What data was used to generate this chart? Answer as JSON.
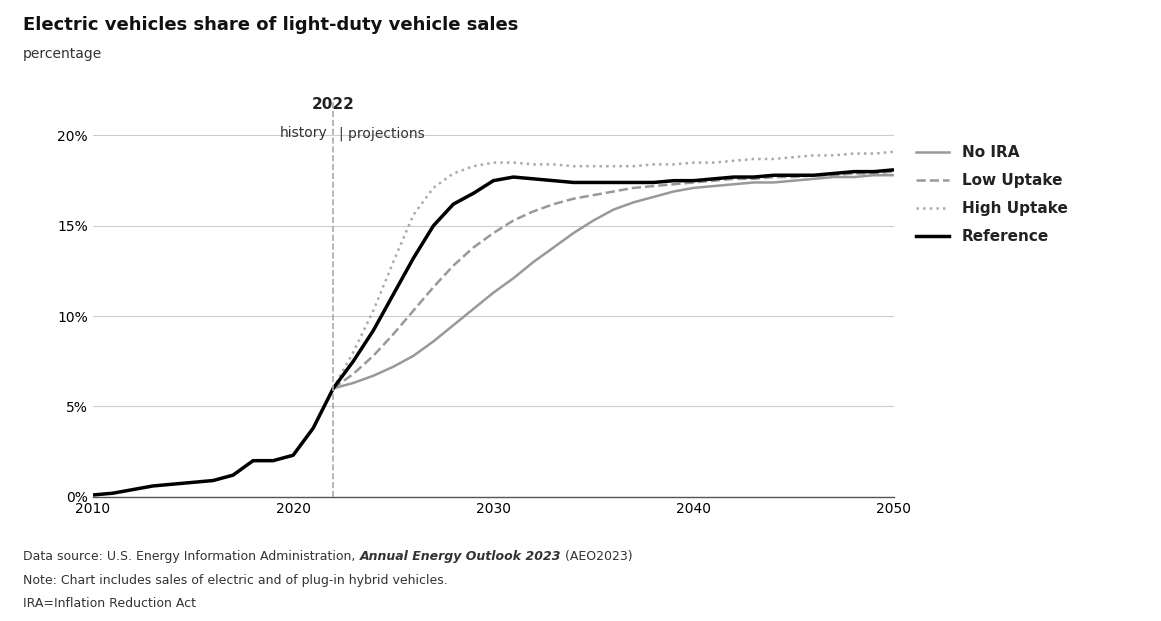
{
  "title": "Electric vehicles share of light-duty vehicle sales",
  "subtitle": "percentage",
  "title_fontsize": 13,
  "subtitle_fontsize": 10,
  "xlim": [
    2010,
    2050
  ],
  "ylim": [
    0,
    0.22
  ],
  "yticks": [
    0,
    0.05,
    0.1,
    0.15,
    0.2
  ],
  "ytick_labels": [
    "0%",
    "5%",
    "10%",
    "15%",
    "20%"
  ],
  "xticks": [
    2010,
    2020,
    2030,
    2040,
    2050
  ],
  "vline_x": 2022,
  "vline_label_year": "2022",
  "history_label": "history",
  "projections_label": "projections",
  "series": {
    "reference": {
      "label": "Reference",
      "color": "#000000",
      "linewidth": 2.5,
      "linestyle": "solid",
      "years": [
        2010,
        2011,
        2012,
        2013,
        2014,
        2015,
        2016,
        2017,
        2018,
        2019,
        2020,
        2021,
        2022,
        2023,
        2024,
        2025,
        2026,
        2027,
        2028,
        2029,
        2030,
        2031,
        2032,
        2033,
        2034,
        2035,
        2036,
        2037,
        2038,
        2039,
        2040,
        2041,
        2042,
        2043,
        2044,
        2045,
        2046,
        2047,
        2048,
        2049,
        2050
      ],
      "values": [
        0.001,
        0.002,
        0.004,
        0.006,
        0.007,
        0.008,
        0.009,
        0.012,
        0.02,
        0.02,
        0.023,
        0.038,
        0.06,
        0.075,
        0.092,
        0.112,
        0.132,
        0.15,
        0.162,
        0.168,
        0.175,
        0.177,
        0.176,
        0.175,
        0.174,
        0.174,
        0.174,
        0.174,
        0.174,
        0.175,
        0.175,
        0.176,
        0.177,
        0.177,
        0.178,
        0.178,
        0.178,
        0.179,
        0.18,
        0.18,
        0.181
      ]
    },
    "no_ira": {
      "label": "No IRA",
      "color": "#999999",
      "linewidth": 1.8,
      "linestyle": "solid",
      "years": [
        2022,
        2023,
        2024,
        2025,
        2026,
        2027,
        2028,
        2029,
        2030,
        2031,
        2032,
        2033,
        2034,
        2035,
        2036,
        2037,
        2038,
        2039,
        2040,
        2041,
        2042,
        2043,
        2044,
        2045,
        2046,
        2047,
        2048,
        2049,
        2050
      ],
      "values": [
        0.06,
        0.063,
        0.067,
        0.072,
        0.078,
        0.086,
        0.095,
        0.104,
        0.113,
        0.121,
        0.13,
        0.138,
        0.146,
        0.153,
        0.159,
        0.163,
        0.166,
        0.169,
        0.171,
        0.172,
        0.173,
        0.174,
        0.174,
        0.175,
        0.176,
        0.177,
        0.177,
        0.178,
        0.178
      ]
    },
    "low_uptake": {
      "label": "Low Uptake",
      "color": "#999999",
      "linewidth": 1.8,
      "linestyle": "dashed",
      "years": [
        2022,
        2023,
        2024,
        2025,
        2026,
        2027,
        2028,
        2029,
        2030,
        2031,
        2032,
        2033,
        2034,
        2035,
        2036,
        2037,
        2038,
        2039,
        2040,
        2041,
        2042,
        2043,
        2044,
        2045,
        2046,
        2047,
        2048,
        2049,
        2050
      ],
      "values": [
        0.06,
        0.068,
        0.078,
        0.09,
        0.103,
        0.116,
        0.128,
        0.138,
        0.146,
        0.153,
        0.158,
        0.162,
        0.165,
        0.167,
        0.169,
        0.171,
        0.172,
        0.173,
        0.174,
        0.175,
        0.176,
        0.176,
        0.177,
        0.177,
        0.178,
        0.178,
        0.179,
        0.179,
        0.18
      ]
    },
    "high_uptake": {
      "label": "High Uptake",
      "color": "#aaaaaa",
      "linewidth": 1.8,
      "linestyle": "dotted",
      "years": [
        2022,
        2023,
        2024,
        2025,
        2026,
        2027,
        2028,
        2029,
        2030,
        2031,
        2032,
        2033,
        2034,
        2035,
        2036,
        2037,
        2038,
        2039,
        2040,
        2041,
        2042,
        2043,
        2044,
        2045,
        2046,
        2047,
        2048,
        2049,
        2050
      ],
      "values": [
        0.06,
        0.08,
        0.103,
        0.13,
        0.156,
        0.171,
        0.179,
        0.183,
        0.185,
        0.185,
        0.184,
        0.184,
        0.183,
        0.183,
        0.183,
        0.183,
        0.184,
        0.184,
        0.185,
        0.185,
        0.186,
        0.187,
        0.187,
        0.188,
        0.189,
        0.189,
        0.19,
        0.19,
        0.191
      ]
    }
  },
  "legend_order": [
    "no_ira",
    "low_uptake",
    "high_uptake",
    "reference"
  ],
  "background_color": "#ffffff",
  "grid_color": "#cccccc"
}
